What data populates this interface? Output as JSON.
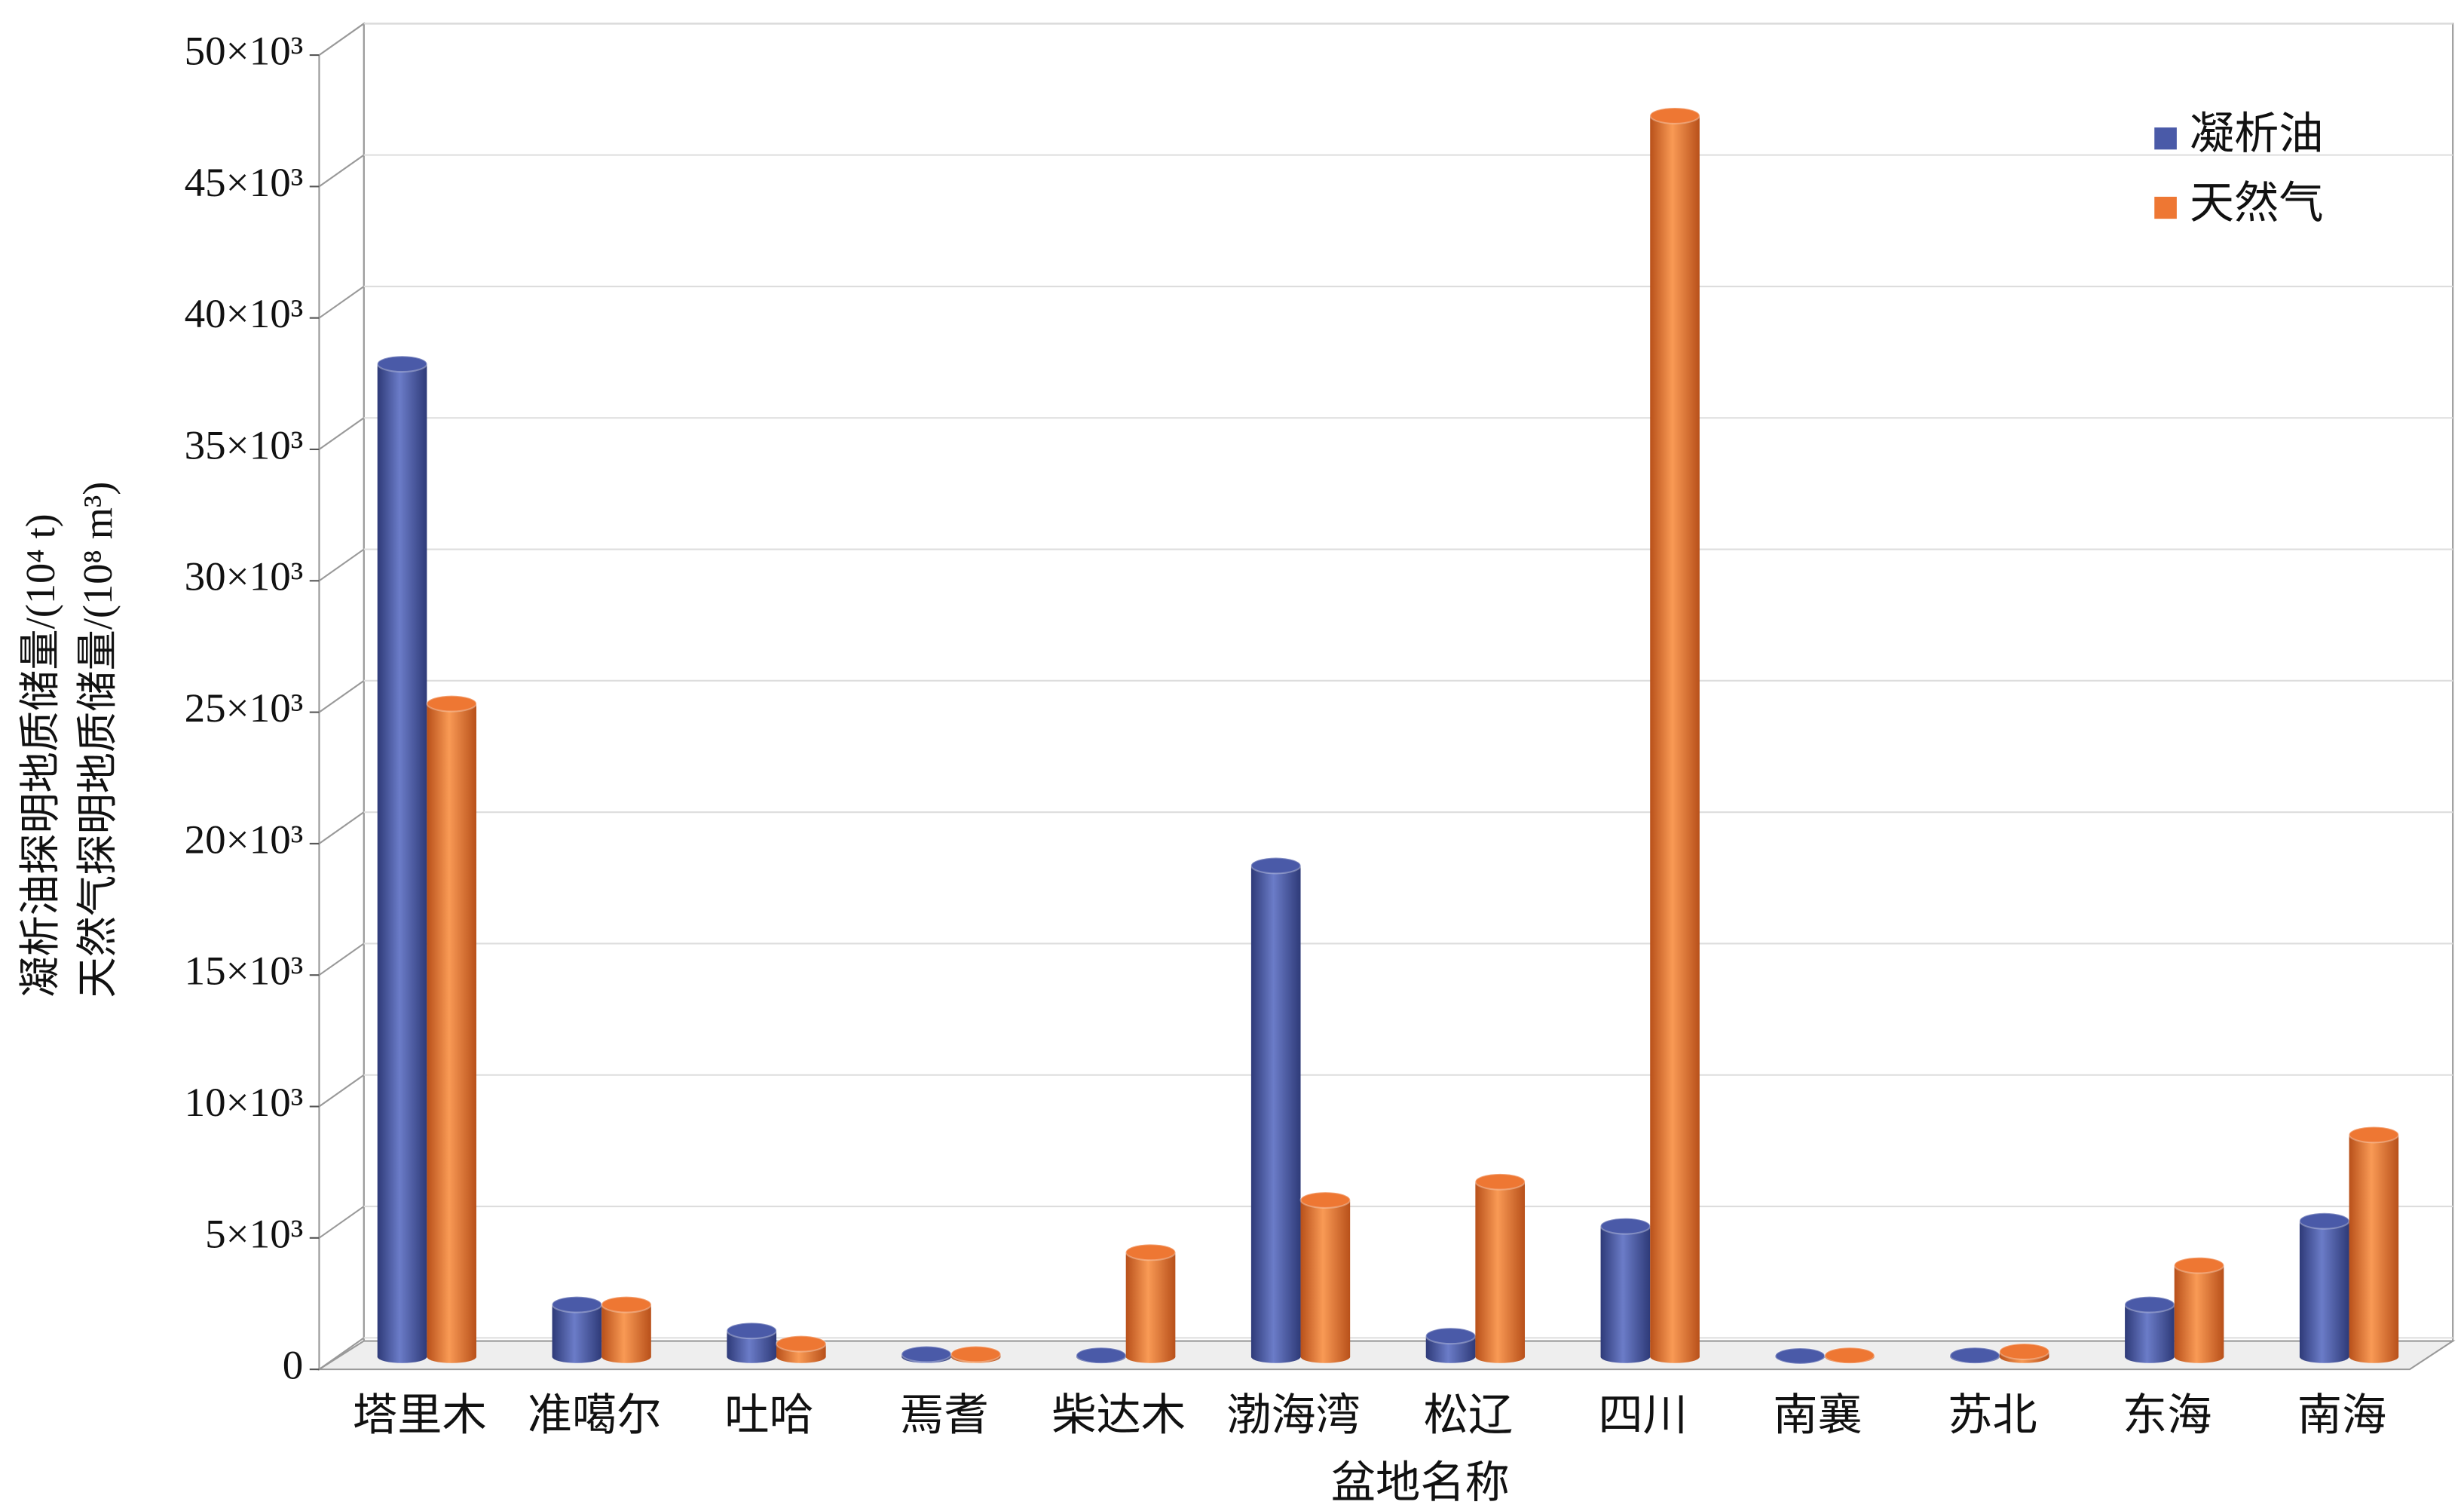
{
  "chart_data": {
    "type": "bar3d",
    "xlabel": "盆地名称",
    "ylabel": [
      "凝析油探明地质储量/(10⁴ t)",
      "天然气探明地质储量/(10⁸ m³)"
    ],
    "categories": [
      "塔里木",
      "准噶尔",
      "吐哈",
      "焉耆",
      "柴达木",
      "渤海湾",
      "松辽",
      "四川",
      "南襄",
      "苏北",
      "东海",
      "南海"
    ],
    "series": [
      {
        "name": "凝析油",
        "color": "#4a5aa8",
        "values": [
          38000,
          2000,
          1000,
          100,
          50,
          18800,
          800,
          5000,
          30,
          50,
          2000,
          5200
        ]
      },
      {
        "name": "天然气",
        "color": "#ee7733",
        "values": [
          25000,
          2000,
          500,
          100,
          4000,
          6000,
          6700,
          47500,
          50,
          200,
          3500,
          8500
        ]
      }
    ],
    "ylim": [
      0,
      50000
    ],
    "yticks": [
      0,
      {
        "value": 5000,
        "label": "5×10³"
      },
      {
        "value": 10000,
        "label": "10×10³"
      },
      {
        "value": 15000,
        "label": "15×10³"
      },
      {
        "value": 20000,
        "label": "20×10³"
      },
      {
        "value": 25000,
        "label": "25×10³"
      },
      {
        "value": 30000,
        "label": "30×10³"
      },
      {
        "value": 35000,
        "label": "35×10³"
      },
      {
        "value": 40000,
        "label": "40×10³"
      },
      {
        "value": 45000,
        "label": "45×10³"
      },
      {
        "value": 50000,
        "label": "50×10³"
      }
    ],
    "legend": "top-right"
  }
}
